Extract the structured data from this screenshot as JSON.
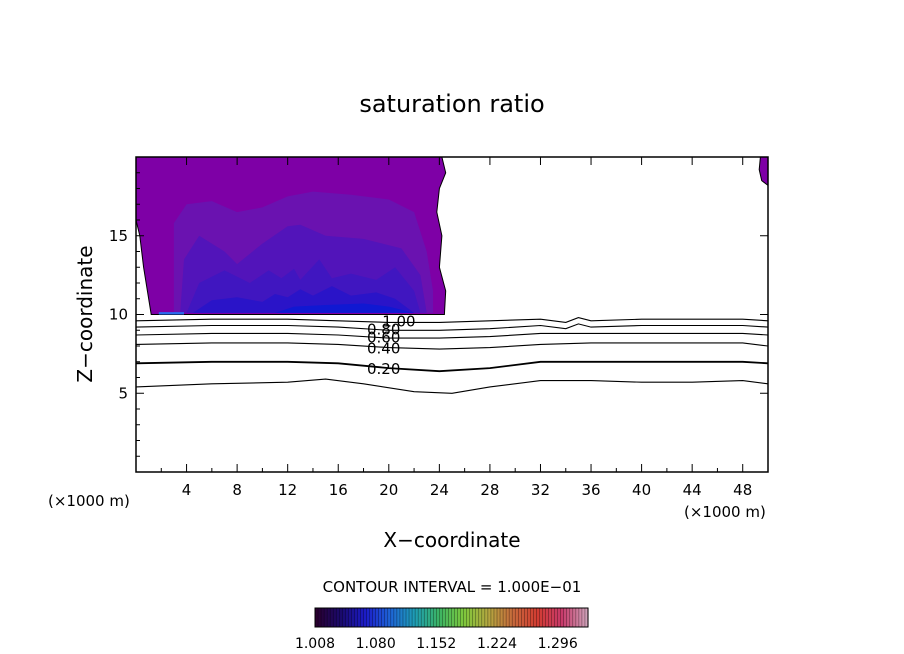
{
  "chart_data": {
    "type": "contour",
    "title": "saturation ratio",
    "xlabel": "X−coordinate",
    "ylabel": "Z−coordinate",
    "x_unit": "(×1000 m)",
    "xlim": [
      0,
      50
    ],
    "ylim": [
      0,
      20
    ],
    "x_ticks": [
      "4",
      "8",
      "12",
      "16",
      "20",
      "24",
      "28",
      "32",
      "36",
      "40",
      "44",
      "48"
    ],
    "y_ticks": [
      "5",
      "10",
      "15"
    ],
    "contour_interval_text": "CONTOUR INTERVAL = 1.000E−01",
    "contour_lines": [
      {
        "level": 0.1,
        "label": "",
        "points": [
          [
            0,
            5.4
          ],
          [
            6,
            5.6
          ],
          [
            12,
            5.7
          ],
          [
            15,
            5.9
          ],
          [
            18,
            5.6
          ],
          [
            22,
            5.1
          ],
          [
            25,
            5.0
          ],
          [
            28,
            5.4
          ],
          [
            32,
            5.8
          ],
          [
            36,
            5.8
          ],
          [
            40,
            5.7
          ],
          [
            44,
            5.7
          ],
          [
            48,
            5.8
          ],
          [
            50,
            5.6
          ]
        ]
      },
      {
        "level": 0.2,
        "label": "0.20",
        "points": [
          [
            0,
            6.9
          ],
          [
            6,
            7.0
          ],
          [
            12,
            7.0
          ],
          [
            16,
            6.9
          ],
          [
            20,
            6.6
          ],
          [
            24,
            6.4
          ],
          [
            28,
            6.6
          ],
          [
            32,
            7.0
          ],
          [
            36,
            7.0
          ],
          [
            40,
            7.0
          ],
          [
            44,
            7.0
          ],
          [
            48,
            7.0
          ],
          [
            50,
            6.9
          ]
        ]
      },
      {
        "level": 0.4,
        "label": "0.40",
        "points": [
          [
            0,
            8.1
          ],
          [
            6,
            8.2
          ],
          [
            12,
            8.2
          ],
          [
            16,
            8.1
          ],
          [
            20,
            7.9
          ],
          [
            24,
            7.8
          ],
          [
            28,
            7.9
          ],
          [
            32,
            8.1
          ],
          [
            36,
            8.2
          ],
          [
            40,
            8.2
          ],
          [
            44,
            8.2
          ],
          [
            48,
            8.2
          ],
          [
            50,
            8.0
          ]
        ]
      },
      {
        "level": 0.6,
        "label": "0.60",
        "points": [
          [
            0,
            8.7
          ],
          [
            6,
            8.8
          ],
          [
            12,
            8.8
          ],
          [
            16,
            8.7
          ],
          [
            20,
            8.5
          ],
          [
            24,
            8.5
          ],
          [
            28,
            8.6
          ],
          [
            32,
            8.8
          ],
          [
            36,
            8.8
          ],
          [
            40,
            8.8
          ],
          [
            44,
            8.8
          ],
          [
            48,
            8.8
          ],
          [
            50,
            8.7
          ]
        ]
      },
      {
        "level": 0.8,
        "label": "0.80",
        "points": [
          [
            0,
            9.2
          ],
          [
            6,
            9.3
          ],
          [
            12,
            9.3
          ],
          [
            16,
            9.2
          ],
          [
            20,
            9.0
          ],
          [
            24,
            9.0
          ],
          [
            28,
            9.1
          ],
          [
            32,
            9.3
          ],
          [
            34,
            9.1
          ],
          [
            35,
            9.4
          ],
          [
            36,
            9.2
          ],
          [
            40,
            9.3
          ],
          [
            44,
            9.3
          ],
          [
            48,
            9.3
          ],
          [
            50,
            9.2
          ]
        ]
      },
      {
        "level": 1.0,
        "label": "1.00",
        "points": [
          [
            0,
            9.6
          ],
          [
            6,
            9.7
          ],
          [
            12,
            9.7
          ],
          [
            16,
            9.6
          ],
          [
            20,
            9.5
          ],
          [
            24,
            9.5
          ],
          [
            28,
            9.6
          ],
          [
            32,
            9.7
          ],
          [
            34,
            9.5
          ],
          [
            35,
            9.8
          ],
          [
            36,
            9.6
          ],
          [
            40,
            9.7
          ],
          [
            44,
            9.7
          ],
          [
            48,
            9.7
          ],
          [
            50,
            9.6
          ]
        ]
      }
    ],
    "filled_regions": [
      {
        "level": 1.008,
        "color": "#7e00a6",
        "points": [
          [
            0,
            20
          ],
          [
            24.2,
            20
          ],
          [
            24.5,
            19
          ],
          [
            24.0,
            18
          ],
          [
            23.8,
            16.5
          ],
          [
            24.2,
            15
          ],
          [
            24.0,
            13
          ],
          [
            24.5,
            11.5
          ],
          [
            24.4,
            10
          ],
          [
            1.2,
            10
          ],
          [
            0.9,
            11.5
          ],
          [
            0.6,
            13
          ],
          [
            0.3,
            15
          ],
          [
            0,
            16
          ]
        ]
      },
      {
        "level": 1.05,
        "color": "#6a12b0",
        "points": [
          [
            3,
            10.1
          ],
          [
            3,
            15.8
          ],
          [
            4,
            17
          ],
          [
            6,
            17.2
          ],
          [
            8,
            16.5
          ],
          [
            10,
            16.8
          ],
          [
            12,
            17.5
          ],
          [
            14,
            17.8
          ],
          [
            17,
            17.6
          ],
          [
            20,
            17.3
          ],
          [
            22,
            16.5
          ],
          [
            23,
            14
          ],
          [
            23.5,
            11.5
          ],
          [
            23.5,
            10.1
          ]
        ]
      },
      {
        "level": 1.1,
        "color": "#5214ba",
        "points": [
          [
            3.5,
            10.1
          ],
          [
            3.8,
            13.5
          ],
          [
            5,
            15
          ],
          [
            7,
            14
          ],
          [
            8,
            13.2
          ],
          [
            10,
            14.5
          ],
          [
            12,
            15.6
          ],
          [
            13,
            15.7
          ],
          [
            15,
            15
          ],
          [
            18,
            14.8
          ],
          [
            21,
            14.2
          ],
          [
            22.5,
            12.5
          ],
          [
            23,
            10.1
          ]
        ]
      },
      {
        "level": 1.15,
        "color": "#4016c0",
        "points": [
          [
            4,
            10.1
          ],
          [
            5,
            12
          ],
          [
            7,
            12.8
          ],
          [
            9,
            12
          ],
          [
            10.5,
            12.8
          ],
          [
            11.5,
            12.3
          ],
          [
            12.5,
            12.9
          ],
          [
            13,
            12.2
          ],
          [
            14.5,
            13.5
          ],
          [
            15.5,
            12.3
          ],
          [
            17,
            12.6
          ],
          [
            19,
            12.2
          ],
          [
            20.5,
            13
          ],
          [
            22,
            11.5
          ],
          [
            22.5,
            10.1
          ]
        ]
      },
      {
        "level": 1.2,
        "color": "#2a14c8",
        "points": [
          [
            4.5,
            10.1
          ],
          [
            6,
            10.9
          ],
          [
            8,
            11.1
          ],
          [
            10,
            10.8
          ],
          [
            11,
            11.3
          ],
          [
            12,
            11.1
          ],
          [
            13,
            11.6
          ],
          [
            14,
            11.2
          ],
          [
            15.5,
            11.8
          ],
          [
            17,
            11.2
          ],
          [
            19,
            11.4
          ],
          [
            20.5,
            11.0
          ],
          [
            22,
            10.1
          ]
        ]
      },
      {
        "level": 1.25,
        "color": "#1018d2",
        "points": [
          [
            11,
            10.1
          ],
          [
            12.5,
            10.5
          ],
          [
            15,
            10.6
          ],
          [
            18,
            10.7
          ],
          [
            20,
            10.5
          ],
          [
            22,
            10.1
          ]
        ]
      },
      {
        "level": 1.296,
        "color": "#2a6cf0",
        "points": [
          [
            1.8,
            10.0
          ],
          [
            3.8,
            10.0
          ],
          [
            3.8,
            10.15
          ],
          [
            1.8,
            10.15
          ]
        ]
      },
      {
        "level": 1.008,
        "color": "#7e00a6",
        "points": [
          [
            49.4,
            20
          ],
          [
            50,
            20
          ],
          [
            50,
            18.2
          ],
          [
            49.5,
            18.5
          ],
          [
            49.3,
            19.2
          ]
        ]
      }
    ],
    "colorbar": {
      "ticks": [
        "1.008",
        "1.080",
        "1.152",
        "1.224",
        "1.296"
      ],
      "range": [
        1.008,
        1.332
      ],
      "colors": [
        "#2a0030",
        "#1a0a6e",
        "#1c1cc8",
        "#1e64d8",
        "#1e9eb4",
        "#3cb464",
        "#7ec83c",
        "#b4a840",
        "#c86a3c",
        "#d23c32",
        "#c83a6a",
        "#d0a0b8"
      ]
    }
  }
}
